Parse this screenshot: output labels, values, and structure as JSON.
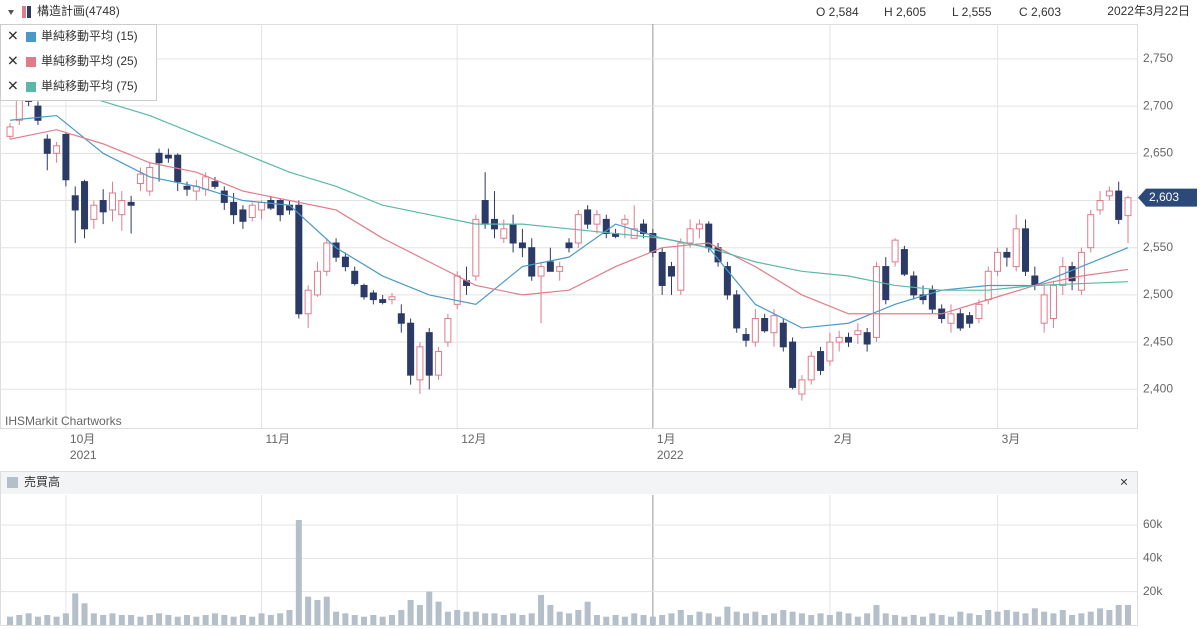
{
  "header": {
    "title": "構造計画(4748)",
    "ohlc": [
      "O 2,584",
      "H 2,605",
      "L 2,555",
      "C 2,603"
    ],
    "date": "2022年3月22日"
  },
  "chart_data": [
    {
      "type": "candlestick",
      "watermark": "IHSMarkit Chartworks",
      "up_color": "#e07c8a",
      "down_color": "#2b3a67",
      "ylim": [
        2359,
        2787
      ],
      "yticks": [
        {
          "value": 2400,
          "label": "2,400"
        },
        {
          "value": 2450,
          "label": "2,450"
        },
        {
          "value": 2500,
          "label": "2,500"
        },
        {
          "value": 2550,
          "label": "2,550"
        },
        {
          "value": 2600,
          "label": "2,600"
        },
        {
          "value": 2650,
          "label": "2,650"
        },
        {
          "value": 2700,
          "label": "2,700"
        },
        {
          "value": 2750,
          "label": "2,750"
        }
      ],
      "xlim": [
        -1,
        121
      ],
      "xticks": [
        {
          "value": 6,
          "label": "10月"
        },
        {
          "value": 27,
          "label": "11月"
        },
        {
          "value": 48,
          "label": "12月"
        },
        {
          "value": 69,
          "label": "1月"
        },
        {
          "value": 88,
          "label": "2月"
        },
        {
          "value": 106,
          "label": "3月"
        }
      ],
      "year_labels": [
        {
          "value": 6,
          "label": "2021"
        },
        {
          "value": 69,
          "label": "2022"
        }
      ],
      "grid": true,
      "last_price": {
        "value": 2603,
        "label": "2,603"
      },
      "ohlc": [
        [
          2668,
          2682,
          2665,
          2678
        ],
        [
          2685,
          2720,
          2680,
          2712
        ],
        [
          2712,
          2735,
          2700,
          2705
        ],
        [
          2700,
          2705,
          2680,
          2685
        ],
        [
          2665,
          2670,
          2632,
          2650
        ],
        [
          2650,
          2662,
          2640,
          2658
        ],
        [
          2670,
          2672,
          2615,
          2622
        ],
        [
          2605,
          2615,
          2555,
          2590
        ],
        [
          2620,
          2622,
          2560,
          2570
        ],
        [
          2580,
          2600,
          2570,
          2595
        ],
        [
          2600,
          2612,
          2575,
          2588
        ],
        [
          2590,
          2620,
          2578,
          2608
        ],
        [
          2585,
          2610,
          2568,
          2600
        ],
        [
          2598,
          2605,
          2565,
          2595
        ],
        [
          2618,
          2635,
          2610,
          2628
        ],
        [
          2610,
          2640,
          2605,
          2635
        ],
        [
          2650,
          2655,
          2620,
          2640
        ],
        [
          2648,
          2655,
          2640,
          2645
        ],
        [
          2648,
          2650,
          2610,
          2620
        ],
        [
          2615,
          2620,
          2605,
          2612
        ],
        [
          2610,
          2622,
          2600,
          2615
        ],
        [
          2612,
          2630,
          2605,
          2625
        ],
        [
          2620,
          2625,
          2612,
          2615
        ],
        [
          2610,
          2615,
          2590,
          2598
        ],
        [
          2598,
          2608,
          2575,
          2585
        ],
        [
          2590,
          2595,
          2570,
          2578
        ],
        [
          2582,
          2598,
          2578,
          2595
        ],
        [
          2590,
          2600,
          2580,
          2598
        ],
        [
          2600,
          2605,
          2590,
          2592
        ],
        [
          2600,
          2602,
          2578,
          2585
        ],
        [
          2595,
          2600,
          2585,
          2590
        ],
        [
          2595,
          2600,
          2475,
          2480
        ],
        [
          2480,
          2510,
          2465,
          2505
        ],
        [
          2500,
          2535,
          2498,
          2525
        ],
        [
          2525,
          2560,
          2520,
          2555
        ],
        [
          2555,
          2560,
          2535,
          2540
        ],
        [
          2540,
          2545,
          2525,
          2530
        ],
        [
          2525,
          2530,
          2510,
          2512
        ],
        [
          2510,
          2512,
          2495,
          2498
        ],
        [
          2502,
          2505,
          2490,
          2495
        ],
        [
          2495,
          2500,
          2490,
          2492
        ],
        [
          2495,
          2502,
          2490,
          2498
        ],
        [
          2480,
          2490,
          2460,
          2470
        ],
        [
          2470,
          2475,
          2405,
          2415
        ],
        [
          2410,
          2450,
          2395,
          2445
        ],
        [
          2460,
          2465,
          2400,
          2415
        ],
        [
          2415,
          2445,
          2410,
          2440
        ],
        [
          2450,
          2480,
          2445,
          2475
        ],
        [
          2490,
          2525,
          2485,
          2520
        ],
        [
          2515,
          2530,
          2500,
          2510
        ],
        [
          2520,
          2585,
          2515,
          2580
        ],
        [
          2600,
          2630,
          2570,
          2575
        ],
        [
          2580,
          2610,
          2560,
          2570
        ],
        [
          2560,
          2580,
          2555,
          2570
        ],
        [
          2575,
          2585,
          2545,
          2555
        ],
        [
          2555,
          2570,
          2540,
          2550
        ],
        [
          2550,
          2560,
          2515,
          2520
        ],
        [
          2520,
          2535,
          2470,
          2530
        ],
        [
          2535,
          2550,
          2525,
          2525
        ],
        [
          2525,
          2535,
          2515,
          2530
        ],
        [
          2555,
          2560,
          2545,
          2550
        ],
        [
          2555,
          2590,
          2550,
          2585
        ],
        [
          2590,
          2595,
          2570,
          2575
        ],
        [
          2575,
          2590,
          2565,
          2585
        ],
        [
          2580,
          2585,
          2560,
          2565
        ],
        [
          2565,
          2570,
          2560,
          2562
        ],
        [
          2575,
          2585,
          2560,
          2580
        ],
        [
          2560,
          2595,
          2560,
          2570
        ],
        [
          2575,
          2580,
          2560,
          2565
        ],
        [
          2565,
          2570,
          2540,
          2545
        ],
        [
          2545,
          2550,
          2500,
          2510
        ],
        [
          2530,
          2535,
          2500,
          2520
        ],
        [
          2505,
          2560,
          2500,
          2555
        ],
        [
          2555,
          2580,
          2550,
          2570
        ],
        [
          2570,
          2580,
          2560,
          2575
        ],
        [
          2575,
          2578,
          2545,
          2550
        ],
        [
          2550,
          2555,
          2530,
          2535
        ],
        [
          2530,
          2535,
          2495,
          2500
        ],
        [
          2500,
          2505,
          2460,
          2465
        ],
        [
          2458,
          2465,
          2445,
          2452
        ],
        [
          2450,
          2485,
          2445,
          2475
        ],
        [
          2475,
          2480,
          2460,
          2462
        ],
        [
          2460,
          2485,
          2445,
          2478
        ],
        [
          2470,
          2475,
          2440,
          2445
        ],
        [
          2450,
          2455,
          2400,
          2402
        ],
        [
          2395,
          2415,
          2388,
          2410
        ],
        [
          2410,
          2440,
          2405,
          2435
        ],
        [
          2440,
          2445,
          2415,
          2420
        ],
        [
          2430,
          2460,
          2425,
          2450
        ],
        [
          2450,
          2462,
          2440,
          2455
        ],
        [
          2455,
          2460,
          2445,
          2450
        ],
        [
          2458,
          2470,
          2448,
          2462
        ],
        [
          2460,
          2465,
          2440,
          2448
        ],
        [
          2455,
          2535,
          2450,
          2530
        ],
        [
          2530,
          2540,
          2490,
          2495
        ],
        [
          2535,
          2560,
          2530,
          2558
        ],
        [
          2548,
          2552,
          2520,
          2522
        ],
        [
          2520,
          2525,
          2495,
          2500
        ],
        [
          2500,
          2510,
          2490,
          2495
        ],
        [
          2505,
          2510,
          2480,
          2485
        ],
        [
          2485,
          2490,
          2470,
          2475
        ],
        [
          2470,
          2490,
          2460,
          2480
        ],
        [
          2480,
          2485,
          2462,
          2465
        ],
        [
          2478,
          2482,
          2465,
          2470
        ],
        [
          2475,
          2495,
          2470,
          2490
        ],
        [
          2495,
          2530,
          2490,
          2525
        ],
        [
          2525,
          2550,
          2520,
          2545
        ],
        [
          2545,
          2550,
          2530,
          2540
        ],
        [
          2530,
          2585,
          2525,
          2570
        ],
        [
          2570,
          2580,
          2520,
          2525
        ],
        [
          2520,
          2530,
          2505,
          2510
        ],
        [
          2470,
          2510,
          2460,
          2500
        ],
        [
          2475,
          2515,
          2465,
          2510
        ],
        [
          2510,
          2540,
          2500,
          2530
        ],
        [
          2530,
          2535,
          2505,
          2515
        ],
        [
          2505,
          2550,
          2500,
          2545
        ],
        [
          2550,
          2590,
          2545,
          2585
        ],
        [
          2590,
          2610,
          2585,
          2600
        ],
        [
          2605,
          2615,
          2600,
          2610
        ],
        [
          2610,
          2620,
          2575,
          2580
        ],
        [
          2584,
          2605,
          2555,
          2603
        ]
      ],
      "series": [
        {
          "name": "単純移動平均 (15)",
          "color": "#4a9ac8",
          "x": [
            0,
            5,
            10,
            15,
            20,
            25,
            30,
            35,
            40,
            45,
            50,
            55,
            60,
            65,
            70,
            75,
            80,
            85,
            90,
            95,
            100,
            105,
            110,
            115,
            120
          ],
          "values": [
            2685,
            2690,
            2650,
            2625,
            2615,
            2600,
            2595,
            2550,
            2520,
            2500,
            2490,
            2530,
            2540,
            2575,
            2560,
            2550,
            2490,
            2465,
            2470,
            2490,
            2505,
            2510,
            2510,
            2530,
            2550
          ]
        },
        {
          "name": "単純移動平均 (25)",
          "color": "#e07c8a",
          "x": [
            0,
            5,
            10,
            15,
            20,
            25,
            30,
            35,
            40,
            45,
            50,
            55,
            60,
            65,
            70,
            75,
            80,
            85,
            90,
            95,
            100,
            105,
            110,
            115,
            120
          ],
          "values": [
            2665,
            2675,
            2660,
            2640,
            2630,
            2610,
            2600,
            2590,
            2560,
            2535,
            2510,
            2500,
            2505,
            2530,
            2550,
            2555,
            2530,
            2500,
            2480,
            2480,
            2480,
            2495,
            2510,
            2520,
            2527
          ]
        },
        {
          "name": "単純移動平均 (75)",
          "color": "#5bb8a8",
          "x": [
            0,
            5,
            10,
            15,
            20,
            25,
            30,
            35,
            40,
            45,
            50,
            55,
            60,
            65,
            70,
            75,
            80,
            85,
            90,
            95,
            100,
            105,
            110,
            115,
            120
          ],
          "values": [
            2730,
            2720,
            2705,
            2690,
            2670,
            2650,
            2630,
            2615,
            2595,
            2585,
            2575,
            2575,
            2570,
            2565,
            2560,
            2550,
            2535,
            2525,
            2520,
            2510,
            2505,
            2505,
            2510,
            2512,
            2514
          ]
        }
      ]
    },
    {
      "type": "bar",
      "title": "売買高",
      "color": "#b4bfca",
      "ylim": [
        0,
        78000
      ],
      "yticks": [
        {
          "value": 20000,
          "label": "20k"
        },
        {
          "value": 40000,
          "label": "40k"
        },
        {
          "value": 60000,
          "label": "60k"
        }
      ],
      "values": [
        5000,
        6000,
        7000,
        5000,
        6000,
        5000,
        7000,
        19000,
        13000,
        7000,
        6000,
        7000,
        6000,
        6000,
        5000,
        6000,
        7000,
        6000,
        5000,
        6000,
        5000,
        6000,
        7000,
        6000,
        5000,
        6000,
        5000,
        7000,
        6000,
        7000,
        9000,
        63000,
        17000,
        15000,
        17000,
        8000,
        7000,
        6000,
        5000,
        6000,
        5000,
        6000,
        9000,
        15000,
        12000,
        20000,
        14000,
        8000,
        9000,
        8000,
        8000,
        7000,
        7000,
        6000,
        7000,
        6000,
        7000,
        18000,
        12000,
        8000,
        7000,
        9000,
        14000,
        6000,
        5000,
        6000,
        5000,
        7000,
        6000,
        5000,
        6000,
        7000,
        9000,
        6000,
        8000,
        7000,
        5000,
        11000,
        8000,
        7000,
        8000,
        6000,
        7000,
        9000,
        8000,
        7000,
        6000,
        7000,
        6000,
        8000,
        7000,
        5000,
        7000,
        12000,
        7000,
        6000,
        5000,
        6000,
        5000,
        7000,
        6000,
        5000,
        8000,
        7000,
        6000,
        9000,
        8000,
        9000,
        8000,
        7000,
        10000,
        8000,
        7000,
        9000,
        6000,
        7000,
        8000,
        10000,
        9000,
        12000,
        12000
      ]
    }
  ]
}
